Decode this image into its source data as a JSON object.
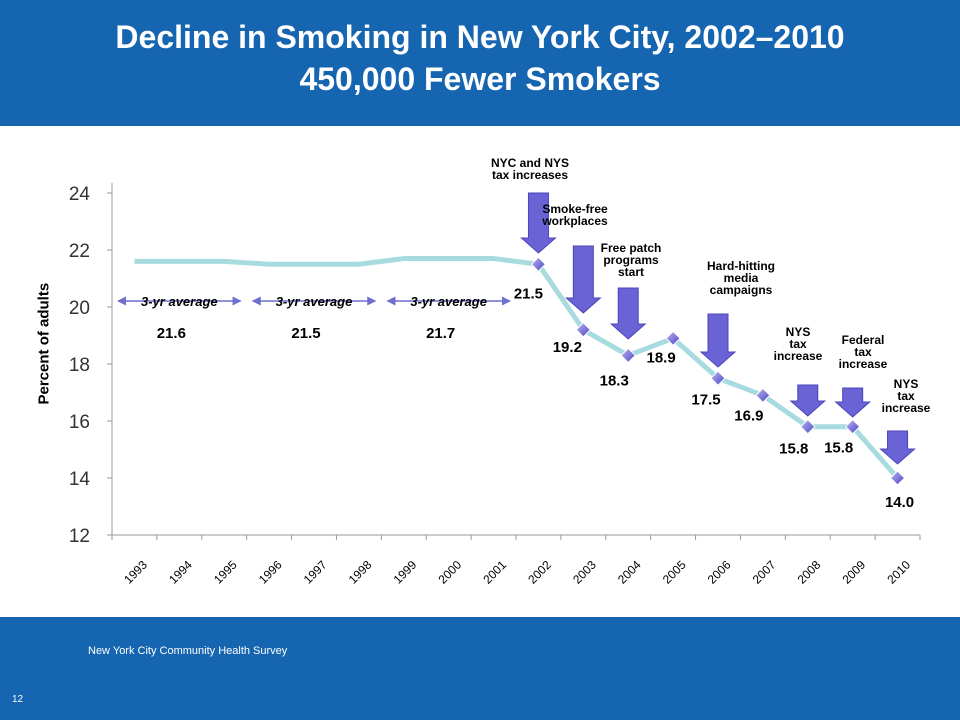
{
  "header": {
    "title_line1": "Decline in Smoking in New York City, 2002–2010",
    "title_line2": "450,000 Fewer Smokers",
    "bg_color": "#1565b0"
  },
  "footer": {
    "source": "New York City Community Health Survey",
    "page_number": "12"
  },
  "chart_data": {
    "type": "line",
    "title": "Decline in Smoking in New York City, 2002–2010",
    "subtitle": "450,000 Fewer Smokers",
    "ylabel": "Percent  of adults",
    "xlabel": "",
    "ylim": [
      12,
      24
    ],
    "yticks": [
      12,
      14,
      16,
      18,
      20,
      22,
      24
    ],
    "categories": [
      "1993",
      "1994",
      "1995",
      "1996",
      "1997",
      "1998",
      "1999",
      "2000",
      "2001",
      "2002",
      "2003",
      "2004",
      "2005",
      "2006",
      "2007",
      "2008",
      "2009",
      "2010"
    ],
    "series": [
      {
        "x": [
          "1993",
          "1994",
          "1995",
          "1996",
          "1997",
          "1998",
          "1999",
          "2000",
          "2001",
          "2002",
          "2003",
          "2004",
          "2005",
          "2006",
          "2007",
          "2008",
          "2009",
          "2010"
        ],
        "values": [
          21.6,
          21.6,
          21.6,
          21.5,
          21.5,
          21.5,
          21.7,
          21.7,
          21.7,
          21.5,
          19.2,
          18.3,
          18.9,
          17.5,
          16.9,
          15.8,
          15.8,
          14.0
        ],
        "markers_from": "2002",
        "color": "#a8dbe0"
      }
    ],
    "data_labels": [
      {
        "year": "2002",
        "text": "21.5"
      },
      {
        "year": "2003",
        "text": "19.2"
      },
      {
        "year": "2004",
        "text": "18.3"
      },
      {
        "year": "2005",
        "text": "18.9"
      },
      {
        "year": "2006",
        "text": "17.5"
      },
      {
        "year": "2007",
        "text": "16.9"
      },
      {
        "year": "2008",
        "text": "15.8"
      },
      {
        "year": "2009",
        "text": "15.8"
      },
      {
        "year": "2010",
        "text": "14.0"
      }
    ],
    "averages": [
      {
        "from": "1993",
        "to": "1995",
        "label": "3-yr average",
        "value": "21.6"
      },
      {
        "from": "1996",
        "to": "1998",
        "label": "3-yr average",
        "value": "21.5"
      },
      {
        "from": "1999",
        "to": "2001",
        "label": "3-yr average",
        "value": "21.7"
      }
    ],
    "events": [
      {
        "year": "2002",
        "lines": [
          "NYC and NYS",
          "tax increases"
        ]
      },
      {
        "year": "2003",
        "lines": [
          "Smoke-free",
          "workplaces"
        ]
      },
      {
        "year": "2004",
        "lines": [
          "Free patch",
          "programs",
          "start"
        ]
      },
      {
        "year": "2006",
        "lines": [
          "Hard-hitting",
          "media",
          "campaigns"
        ]
      },
      {
        "year": "2008",
        "lines": [
          "NYS",
          "tax",
          "increase"
        ]
      },
      {
        "year": "2009",
        "lines": [
          "Federal",
          "tax",
          "increase"
        ]
      },
      {
        "year": "2010",
        "lines": [
          "NYS",
          "tax",
          "increase"
        ]
      }
    ],
    "arrow_color": "#6a63d6",
    "grid": false
  }
}
